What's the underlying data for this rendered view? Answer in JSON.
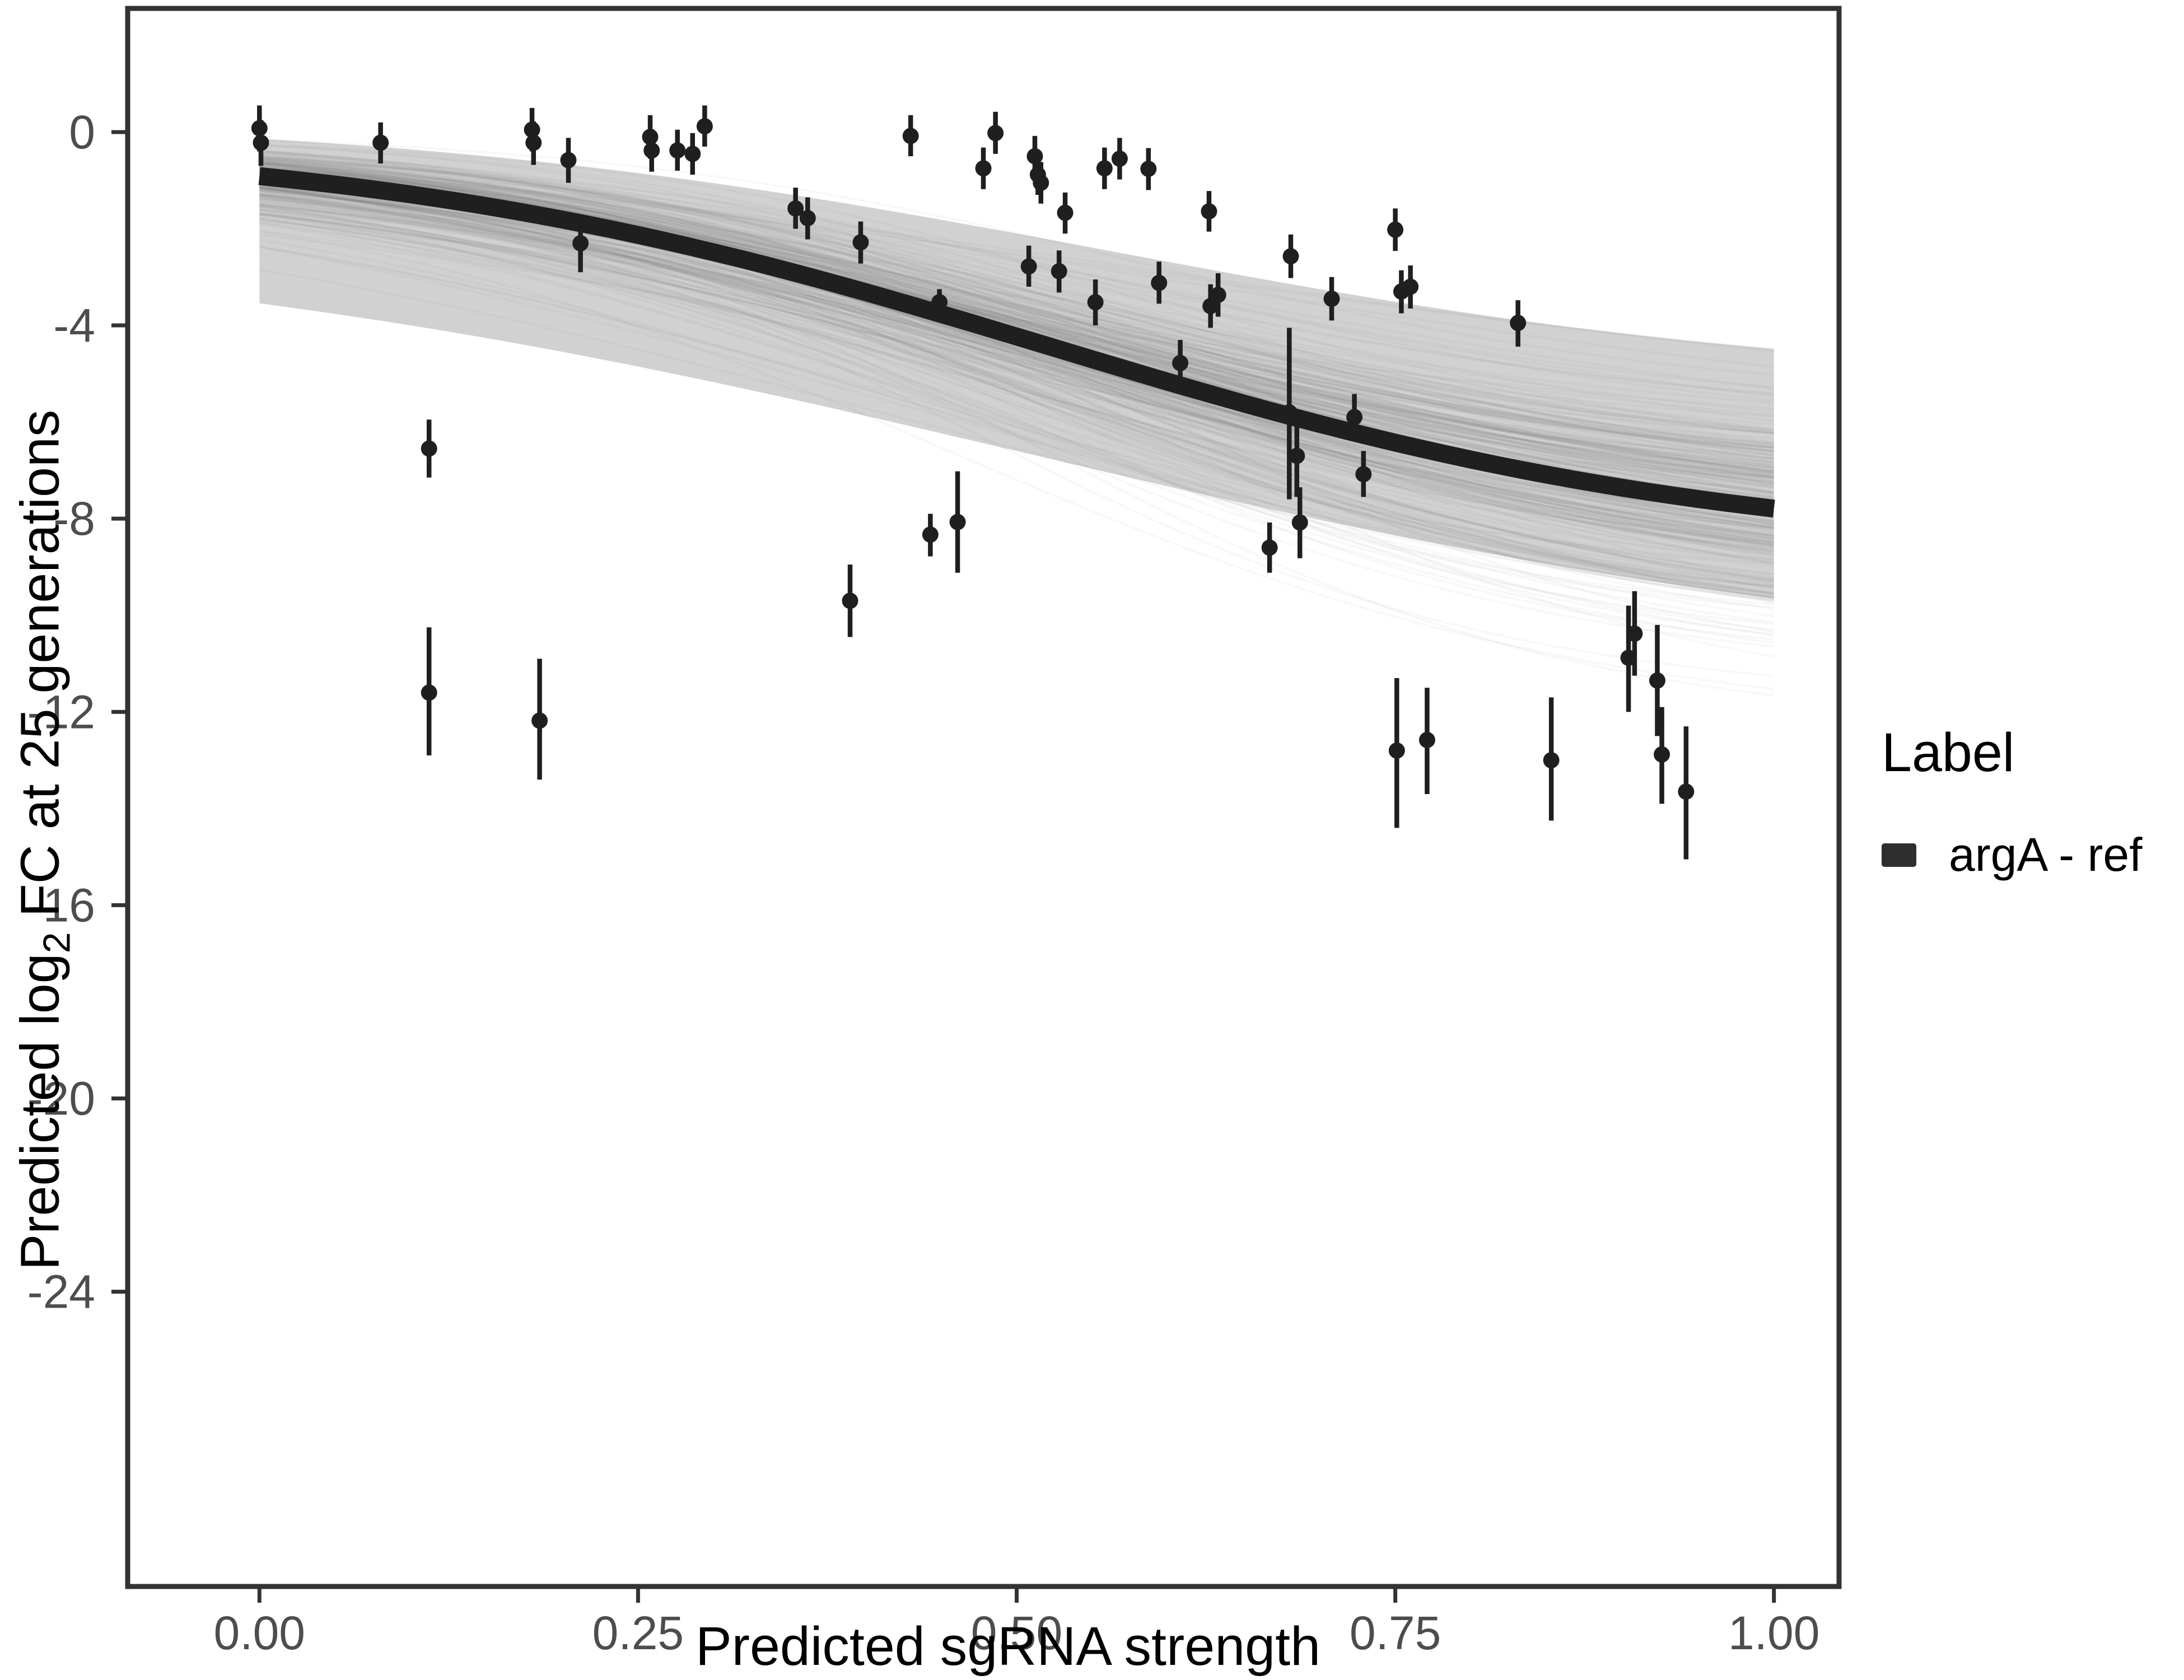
{
  "chart_data": {
    "type": "scatter",
    "title": "",
    "xlabel": "Predicted sgRNA strength",
    "ylabel_parts": {
      "pre": "Predicted  log",
      "sub": "2",
      "post": " FC at 25 generations"
    },
    "xlim": [
      -0.087,
      1.043
    ],
    "ylim": [
      -30.1,
      2.56
    ],
    "grid": "off",
    "x_ticks": {
      "values": [
        0,
        0.25,
        0.5,
        0.75,
        1.0
      ],
      "labels": [
        "0.00",
        "0.25",
        "0.50",
        "0.75",
        "1.00"
      ]
    },
    "y_ticks": {
      "values": [
        0,
        -4,
        -8,
        -12,
        -16,
        -20,
        -24
      ],
      "labels": [
        "0",
        "-4",
        "-8",
        "-12",
        "-16",
        "-20",
        "-24"
      ]
    },
    "legend": {
      "position": "right",
      "title": "Label",
      "items": [
        {
          "label": "argA - ref",
          "color": "#2e2e2e"
        }
      ]
    },
    "series": [
      {
        "name": "argA - ref",
        "type": "pointrange",
        "color": "#1f1f1f",
        "points": [
          {
            "x": 0.0,
            "y": 0.08,
            "hi": 0.55,
            "lo": -0.4
          },
          {
            "x": 0.001,
            "y": -0.22,
            "hi": 0.25,
            "lo": -0.7
          },
          {
            "x": 0.08,
            "y": -0.22,
            "hi": 0.2,
            "lo": -0.65
          },
          {
            "x": 0.112,
            "y": -6.55,
            "hi": -5.95,
            "lo": -7.15
          },
          {
            "x": 0.112,
            "y": -11.6,
            "hi": -10.25,
            "lo": -12.9
          },
          {
            "x": 0.18,
            "y": 0.05,
            "hi": 0.5,
            "lo": -0.4
          },
          {
            "x": 0.181,
            "y": -0.22,
            "hi": 0.22,
            "lo": -0.68
          },
          {
            "x": 0.185,
            "y": -12.18,
            "hi": -10.9,
            "lo": -13.4
          },
          {
            "x": 0.204,
            "y": -0.58,
            "hi": -0.12,
            "lo": -1.05
          },
          {
            "x": 0.212,
            "y": -2.3,
            "hi": -1.95,
            "lo": -2.9
          },
          {
            "x": 0.258,
            "y": -0.1,
            "hi": 0.35,
            "lo": -0.55
          },
          {
            "x": 0.259,
            "y": -0.38,
            "hi": 0.06,
            "lo": -0.82
          },
          {
            "x": 0.276,
            "y": -0.38,
            "hi": 0.05,
            "lo": -0.8
          },
          {
            "x": 0.286,
            "y": -0.45,
            "hi": -0.02,
            "lo": -0.88
          },
          {
            "x": 0.294,
            "y": 0.12,
            "hi": 0.55,
            "lo": -0.3
          },
          {
            "x": 0.354,
            "y": -1.58,
            "hi": -1.15,
            "lo": -2.0
          },
          {
            "x": 0.362,
            "y": -1.78,
            "hi": -1.35,
            "lo": -2.22
          },
          {
            "x": 0.39,
            "y": -9.7,
            "hi": -8.95,
            "lo": -10.45
          },
          {
            "x": 0.397,
            "y": -2.28,
            "hi": -1.85,
            "lo": -2.72
          },
          {
            "x": 0.43,
            "y": -0.08,
            "hi": 0.35,
            "lo": -0.5
          },
          {
            "x": 0.443,
            "y": -8.33,
            "hi": -7.9,
            "lo": -8.78
          },
          {
            "x": 0.449,
            "y": -3.52,
            "hi": -3.25,
            "lo": -3.8
          },
          {
            "x": 0.461,
            "y": -8.07,
            "hi": -7.02,
            "lo": -9.12
          },
          {
            "x": 0.478,
            "y": -0.75,
            "hi": -0.32,
            "lo": -1.18
          },
          {
            "x": 0.486,
            "y": -0.02,
            "hi": 0.42,
            "lo": -0.45
          },
          {
            "x": 0.508,
            "y": -2.78,
            "hi": -2.35,
            "lo": -3.2
          },
          {
            "x": 0.512,
            "y": -0.5,
            "hi": -0.08,
            "lo": -0.93
          },
          {
            "x": 0.514,
            "y": -0.88,
            "hi": -0.48,
            "lo": -1.3
          },
          {
            "x": 0.516,
            "y": -1.05,
            "hi": -0.62,
            "lo": -1.48
          },
          {
            "x": 0.528,
            "y": -2.88,
            "hi": -2.45,
            "lo": -3.32
          },
          {
            "x": 0.532,
            "y": -1.67,
            "hi": -1.25,
            "lo": -2.1
          },
          {
            "x": 0.552,
            "y": -3.52,
            "hi": -3.05,
            "lo": -4.0
          },
          {
            "x": 0.558,
            "y": -0.75,
            "hi": -0.32,
            "lo": -1.18
          },
          {
            "x": 0.568,
            "y": -0.55,
            "hi": -0.12,
            "lo": -0.98
          },
          {
            "x": 0.587,
            "y": -0.76,
            "hi": -0.33,
            "lo": -1.2
          },
          {
            "x": 0.594,
            "y": -3.12,
            "hi": -2.68,
            "lo": -3.55
          },
          {
            "x": 0.608,
            "y": -4.78,
            "hi": -4.3,
            "lo": -5.25
          },
          {
            "x": 0.627,
            "y": -1.64,
            "hi": -1.22,
            "lo": -2.06
          },
          {
            "x": 0.628,
            "y": -3.6,
            "hi": -3.15,
            "lo": -4.05
          },
          {
            "x": 0.633,
            "y": -3.37,
            "hi": -2.92,
            "lo": -3.82
          },
          {
            "x": 0.667,
            "y": -8.6,
            "hi": -8.08,
            "lo": -9.12
          },
          {
            "x": 0.68,
            "y": -5.8,
            "hi": -4.05,
            "lo": -7.6
          },
          {
            "x": 0.681,
            "y": -2.57,
            "hi": -2.12,
            "lo": -3.02
          },
          {
            "x": 0.685,
            "y": -6.7,
            "hi": -5.85,
            "lo": -7.55
          },
          {
            "x": 0.687,
            "y": -8.08,
            "hi": -7.35,
            "lo": -8.82
          },
          {
            "x": 0.708,
            "y": -3.45,
            "hi": -3.0,
            "lo": -3.9
          },
          {
            "x": 0.723,
            "y": -5.9,
            "hi": -5.42,
            "lo": -6.4
          },
          {
            "x": 0.729,
            "y": -7.08,
            "hi": -6.6,
            "lo": -7.55
          },
          {
            "x": 0.75,
            "y": -2.02,
            "hi": -1.58,
            "lo": -2.46
          },
          {
            "x": 0.751,
            "y": -12.8,
            "hi": -11.3,
            "lo": -14.4
          },
          {
            "x": 0.754,
            "y": -3.3,
            "hi": -2.86,
            "lo": -3.75
          },
          {
            "x": 0.76,
            "y": -3.2,
            "hi": -2.76,
            "lo": -3.65
          },
          {
            "x": 0.771,
            "y": -12.58,
            "hi": -11.5,
            "lo": -13.7
          },
          {
            "x": 0.831,
            "y": -3.95,
            "hi": -3.48,
            "lo": -4.44
          },
          {
            "x": 0.853,
            "y": -13.0,
            "hi": -11.7,
            "lo": -14.25
          },
          {
            "x": 0.904,
            "y": -10.88,
            "hi": -9.8,
            "lo": -12.0
          },
          {
            "x": 0.908,
            "y": -10.38,
            "hi": -9.5,
            "lo": -11.25
          },
          {
            "x": 0.923,
            "y": -11.35,
            "hi": -10.2,
            "lo": -12.5
          },
          {
            "x": 0.926,
            "y": -12.88,
            "hi": -11.9,
            "lo": -13.9
          },
          {
            "x": 0.942,
            "y": -13.65,
            "hi": -12.3,
            "lo": -15.05
          }
        ]
      }
    ],
    "fit_curve": {
      "model": "logistic",
      "b": -0.12,
      "a": 8.6,
      "k": 4.4,
      "m": 0.52,
      "x_range": [
        0,
        1
      ],
      "color": "#1f1f1f",
      "width": 32
    },
    "uncertainty_band": {
      "upper": {
        "b": 0.35,
        "a": 5.6,
        "k": 4.2,
        "m": 0.56
      },
      "lower": {
        "b": -2.0,
        "a": 9.2,
        "k": 3.2,
        "m": 0.5
      },
      "fill": "rgba(145,145,145,0.42)",
      "draws": {
        "n": 240,
        "seed": 42,
        "a_sd": [
          1.6,
          3.0
        ],
        "m_sd": [
          0.05,
          0.1
        ],
        "k_sd": [
          0.8,
          1.3
        ],
        "b_sd": [
          0.45,
          0.8
        ],
        "stroke": "128,128,128",
        "opacity_core": 0.1,
        "opacity_tail": 0.06,
        "width": 4
      }
    }
  },
  "layout_text": {
    "point_glyph": "filled-circle-with-vertical-errorbar"
  },
  "colors": {
    "background": "#ffffff",
    "panel_border": "#333333",
    "tick_mark": "#333333",
    "tick_label": "#4d4d4d",
    "axis_title": "#000000",
    "point": "#1f1f1f",
    "fit_line": "#1f1f1f"
  }
}
